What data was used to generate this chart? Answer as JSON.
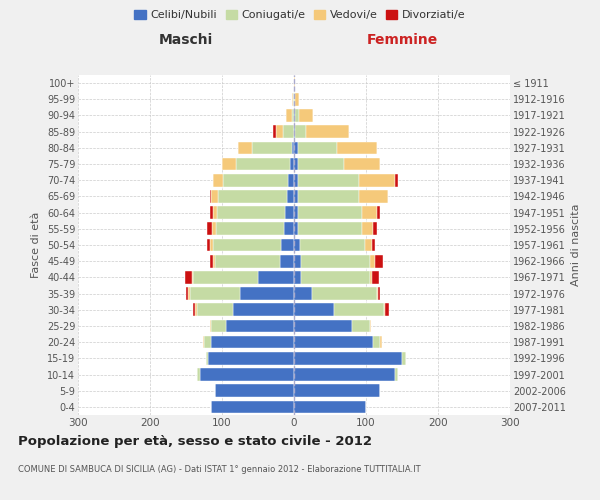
{
  "age_groups": [
    "0-4",
    "5-9",
    "10-14",
    "15-19",
    "20-24",
    "25-29",
    "30-34",
    "35-39",
    "40-44",
    "45-49",
    "50-54",
    "55-59",
    "60-64",
    "65-69",
    "70-74",
    "75-79",
    "80-84",
    "85-89",
    "90-94",
    "95-99",
    "100+"
  ],
  "birth_years": [
    "2007-2011",
    "2002-2006",
    "1997-2001",
    "1992-1996",
    "1987-1991",
    "1982-1986",
    "1977-1981",
    "1972-1976",
    "1967-1971",
    "1962-1966",
    "1957-1961",
    "1952-1956",
    "1947-1951",
    "1942-1946",
    "1937-1941",
    "1932-1936",
    "1927-1931",
    "1922-1926",
    "1917-1921",
    "1912-1916",
    "≤ 1911"
  ],
  "maschi": {
    "celibi": [
      115,
      110,
      130,
      120,
      115,
      95,
      85,
      75,
      50,
      20,
      18,
      14,
      12,
      10,
      8,
      5,
      3,
      0,
      0,
      0,
      0
    ],
    "coniugati": [
      0,
      0,
      5,
      2,
      10,
      20,
      50,
      70,
      90,
      90,
      95,
      95,
      95,
      95,
      90,
      75,
      55,
      15,
      3,
      1,
      0
    ],
    "vedovi": [
      0,
      0,
      0,
      0,
      2,
      2,
      2,
      2,
      2,
      3,
      3,
      5,
      5,
      10,
      15,
      20,
      20,
      10,
      8,
      2,
      0
    ],
    "divorziati": [
      0,
      0,
      0,
      0,
      0,
      0,
      3,
      3,
      10,
      4,
      5,
      7,
      5,
      2,
      0,
      0,
      0,
      4,
      0,
      0,
      0
    ]
  },
  "femmine": {
    "nubili": [
      100,
      120,
      140,
      150,
      110,
      80,
      55,
      25,
      10,
      10,
      8,
      5,
      5,
      5,
      5,
      5,
      5,
      2,
      2,
      0,
      0
    ],
    "coniugate": [
      0,
      0,
      5,
      5,
      10,
      25,
      70,
      90,
      95,
      95,
      90,
      90,
      90,
      85,
      85,
      65,
      55,
      15,
      5,
      2,
      0
    ],
    "vedove": [
      0,
      0,
      0,
      0,
      2,
      2,
      2,
      2,
      3,
      8,
      10,
      15,
      20,
      40,
      50,
      50,
      55,
      60,
      20,
      5,
      2
    ],
    "divorziate": [
      0,
      0,
      0,
      0,
      0,
      0,
      5,
      3,
      10,
      10,
      5,
      5,
      5,
      0,
      5,
      0,
      0,
      0,
      0,
      0,
      0
    ]
  },
  "colors": {
    "celibi_nubili": "#4472c4",
    "coniugati": "#c5dba4",
    "vedovi": "#f5c97a",
    "divorziati": "#cc1111"
  },
  "xlim": 300,
  "title": "Popolazione per età, sesso e stato civile - 2012",
  "subtitle": "COMUNE DI SAMBUCA DI SICILIA (AG) - Dati ISTAT 1° gennaio 2012 - Elaborazione TUTTITALIA.IT",
  "ylabel": "Fasce di età",
  "ylabel_right": "Anni di nascita",
  "xlabel_left": "Maschi",
  "xlabel_right": "Femmine",
  "legend_labels": [
    "Celibi/Nubili",
    "Coniugati/e",
    "Vedovi/e",
    "Divorziati/e"
  ],
  "bg_color": "#f0f0f0",
  "plot_bg_color": "#ffffff"
}
